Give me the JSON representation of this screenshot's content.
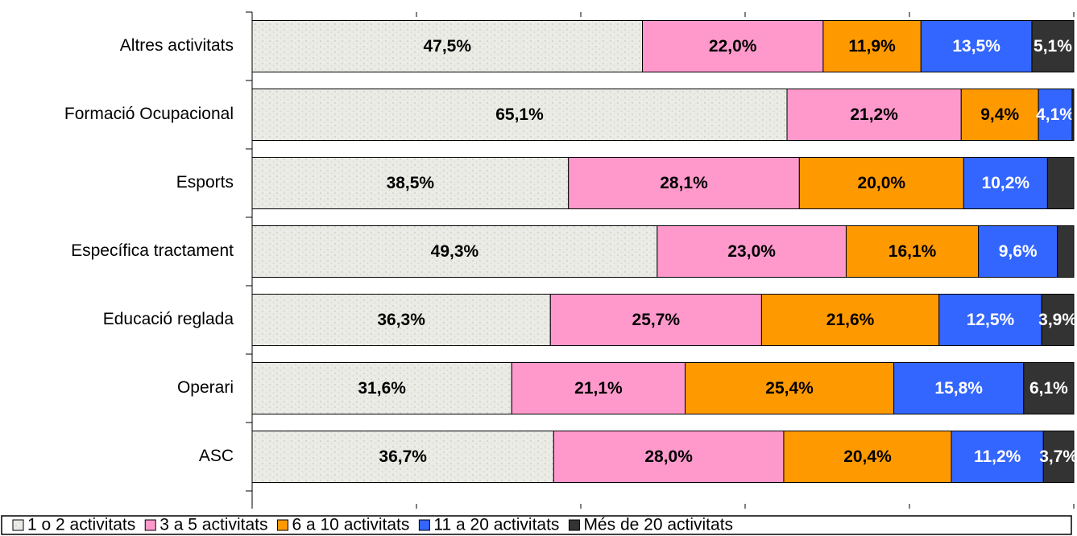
{
  "chart_data": {
    "type": "stacked_barh",
    "categories": [
      "Altres activitats",
      "Formació Ocupacional",
      "Esports",
      "Específica tractament",
      "Educació reglada",
      "Operari",
      "ASC"
    ],
    "series": [
      {
        "name": "1 o 2 activitats",
        "color": "#ebebe6",
        "values": [
          47.5,
          65.1,
          38.5,
          49.3,
          36.3,
          31.6,
          36.7
        ],
        "value_labels": [
          "47,5%",
          "65,1%",
          "38,5%",
          "49,3%",
          "36,3%",
          "31,6%",
          "36,7%"
        ]
      },
      {
        "name": "3 a 5 activitats",
        "color": "#ff99cc",
        "values": [
          22.0,
          21.2,
          28.1,
          23.0,
          25.7,
          21.1,
          28.0
        ],
        "value_labels": [
          "22,0%",
          "21,2%",
          "28,1%",
          "23,0%",
          "25,7%",
          "21,1%",
          "28,0%"
        ]
      },
      {
        "name": "6 a 10 activitats",
        "color": "#ff9900",
        "values": [
          11.9,
          9.4,
          20.0,
          16.1,
          21.6,
          25.4,
          20.4
        ],
        "value_labels": [
          "11,9%",
          "9,4%",
          "20,0%",
          "16,1%",
          "21,6%",
          "25,4%",
          "20,4%"
        ]
      },
      {
        "name": "11 a 20 activitats",
        "color": "#3366ff",
        "values": [
          13.5,
          4.1,
          10.2,
          9.6,
          12.5,
          15.8,
          11.2
        ],
        "value_labels": [
          "13,5%",
          "4,1%",
          "10,2%",
          "9,6%",
          "12,5%",
          "15,8%",
          "11,2%"
        ]
      },
      {
        "name": "Més de 20 activitats",
        "color": "#333333",
        "values": [
          5.1,
          0.2,
          3.2,
          2.0,
          3.9,
          6.1,
          3.7
        ],
        "value_labels": [
          "5,1%",
          null,
          null,
          null,
          "3,9%",
          "6,1%",
          "3,7%"
        ]
      }
    ],
    "xlim": [
      0,
      100
    ],
    "xticks": [
      0,
      20,
      40,
      60,
      80,
      100
    ],
    "legend": "bottom"
  }
}
